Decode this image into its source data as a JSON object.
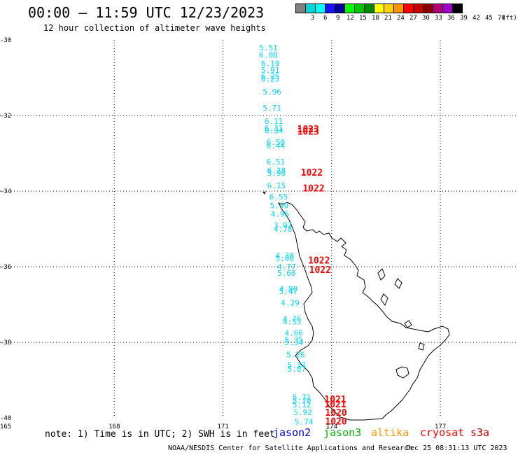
{
  "title": "00:00 – 11:59 UTC 12/23/2023",
  "subtitle": "12 hour collection of altimeter wave heights",
  "color_scale": {
    "unit": "(ft)",
    "bins": [
      {
        "label": "",
        "color": "#808080"
      },
      {
        "label": "3",
        "color": "#00d8d8"
      },
      {
        "label": "6",
        "color": "#00ffff"
      },
      {
        "label": "9",
        "color": "#1414ff"
      },
      {
        "label": "12",
        "color": "#0000a0"
      },
      {
        "label": "15",
        "color": "#00ff00"
      },
      {
        "label": "18",
        "color": "#00c800"
      },
      {
        "label": "21",
        "color": "#008c00"
      },
      {
        "label": "24",
        "color": "#ffff00"
      },
      {
        "label": "27",
        "color": "#ffd200"
      },
      {
        "label": "30",
        "color": "#ff9600"
      },
      {
        "label": "33",
        "color": "#ff0000"
      },
      {
        "label": "36",
        "color": "#c80000"
      },
      {
        "label": "39",
        "color": "#8c0000"
      },
      {
        "label": "42",
        "color": "#b40078"
      },
      {
        "label": "45",
        "color": "#a000c8"
      },
      {
        "label": "70",
        "color": "#000000"
      }
    ]
  },
  "axes": {
    "lat_labels": [
      "-30",
      "-32",
      "-34",
      "-36",
      "-38",
      "-40"
    ],
    "lon_labels": [
      "165",
      "168",
      "171",
      "174",
      "177"
    ]
  },
  "wave_heights": [
    {
      "lat": -30.2,
      "lon": 172.0,
      "value": "5.51"
    },
    {
      "lat": -30.4,
      "lon": 172.0,
      "value": "6.08"
    },
    {
      "lat": -30.62,
      "lon": 172.05,
      "value": "6.19"
    },
    {
      "lat": -30.8,
      "lon": 172.05,
      "value": "5.91"
    },
    {
      "lat": -30.96,
      "lon": 172.05,
      "value": "6.25"
    },
    {
      "lat": -31.03,
      "lon": 172.05,
      "value": "6.23"
    },
    {
      "lat": -31.37,
      "lon": 172.1,
      "value": "5.96"
    },
    {
      "lat": -31.8,
      "lon": 172.1,
      "value": "5.71"
    },
    {
      "lat": -32.15,
      "lon": 172.15,
      "value": "6.11"
    },
    {
      "lat": -32.33,
      "lon": 172.15,
      "value": "6.31"
    },
    {
      "lat": -32.4,
      "lon": 172.15,
      "value": "6.34"
    },
    {
      "lat": -32.7,
      "lon": 172.2,
      "value": "6.50"
    },
    {
      "lat": -32.8,
      "lon": 172.2,
      "value": "6.44"
    },
    {
      "lat": -33.22,
      "lon": 172.2,
      "value": "6.51"
    },
    {
      "lat": -33.45,
      "lon": 172.22,
      "value": "6.38"
    },
    {
      "lat": -33.52,
      "lon": 172.22,
      "value": "5.98"
    },
    {
      "lat": -33.85,
      "lon": 172.22,
      "value": "6.15"
    },
    {
      "lat": -34.15,
      "lon": 172.28,
      "value": "6.55"
    },
    {
      "lat": -34.38,
      "lon": 172.3,
      "value": "5.99"
    },
    {
      "lat": -34.6,
      "lon": 172.32,
      "value": "4.95"
    },
    {
      "lat": -34.9,
      "lon": 172.4,
      "value": "3.97"
    },
    {
      "lat": -35.0,
      "lon": 172.4,
      "value": "4.78"
    },
    {
      "lat": -35.7,
      "lon": 172.45,
      "value": "4.38"
    },
    {
      "lat": -35.78,
      "lon": 172.45,
      "value": "5.00"
    },
    {
      "lat": -36.0,
      "lon": 172.5,
      "value": "4.77"
    },
    {
      "lat": -36.17,
      "lon": 172.5,
      "value": "5.60"
    },
    {
      "lat": -36.58,
      "lon": 172.55,
      "value": "4.80"
    },
    {
      "lat": -36.65,
      "lon": 172.55,
      "value": "5.47"
    },
    {
      "lat": -36.95,
      "lon": 172.6,
      "value": "4.29"
    },
    {
      "lat": -37.38,
      "lon": 172.65,
      "value": "4.76"
    },
    {
      "lat": -37.45,
      "lon": 172.65,
      "value": "4.55"
    },
    {
      "lat": -37.75,
      "lon": 172.7,
      "value": "4.66"
    },
    {
      "lat": -37.93,
      "lon": 172.7,
      "value": "5.35"
    },
    {
      "lat": -38.0,
      "lon": 172.7,
      "value": "5.34"
    },
    {
      "lat": -38.32,
      "lon": 172.75,
      "value": "5.26"
    },
    {
      "lat": -38.6,
      "lon": 172.78,
      "value": "5.37"
    },
    {
      "lat": -38.7,
      "lon": 172.78,
      "value": "5.07"
    },
    {
      "lat": -39.45,
      "lon": 172.92,
      "value": "5.71"
    },
    {
      "lat": -39.55,
      "lon": 172.92,
      "value": "5.70"
    },
    {
      "lat": -39.65,
      "lon": 172.92,
      "value": "5.12"
    },
    {
      "lat": -39.85,
      "lon": 172.95,
      "value": "5.92"
    },
    {
      "lat": -40.1,
      "lon": 172.98,
      "value": "5.74"
    }
  ],
  "time_labels": [
    {
      "lat": -32.35,
      "lon": 173.05,
      "value": "1023"
    },
    {
      "lat": -32.42,
      "lon": 173.05,
      "value": "1023"
    },
    {
      "lat": -33.5,
      "lon": 173.15,
      "value": "1022"
    },
    {
      "lat": -33.92,
      "lon": 173.2,
      "value": "1022"
    },
    {
      "lat": -35.82,
      "lon": 173.35,
      "value": "1022"
    },
    {
      "lat": -36.07,
      "lon": 173.38,
      "value": "1022"
    },
    {
      "lat": -39.5,
      "lon": 173.8,
      "value": "1021"
    },
    {
      "lat": -39.63,
      "lon": 173.8,
      "value": "1021"
    },
    {
      "lat": -39.85,
      "lon": 173.82,
      "value": "1020"
    },
    {
      "lat": -40.08,
      "lon": 173.82,
      "value": "1020"
    }
  ],
  "note": "note: 1) Time is in UTC; 2) SWH is in feet",
  "satellites": [
    {
      "name": "jason2",
      "color": "#0000ff"
    },
    {
      "name": "jason3",
      "color": "#00b400"
    },
    {
      "name": "altika",
      "color": "#ff9600"
    },
    {
      "name": "cryosat",
      "color": "#ff0000"
    },
    {
      "name": "s3a",
      "color": "#c80000"
    }
  ],
  "footer_left": "NOAA/NESDIS Center for Satellite Applications and Research",
  "footer_right": "Dec 25 08:31:13 UTC 2023",
  "colors": {
    "wave": "#00d8ff",
    "time": "#ff0000"
  }
}
